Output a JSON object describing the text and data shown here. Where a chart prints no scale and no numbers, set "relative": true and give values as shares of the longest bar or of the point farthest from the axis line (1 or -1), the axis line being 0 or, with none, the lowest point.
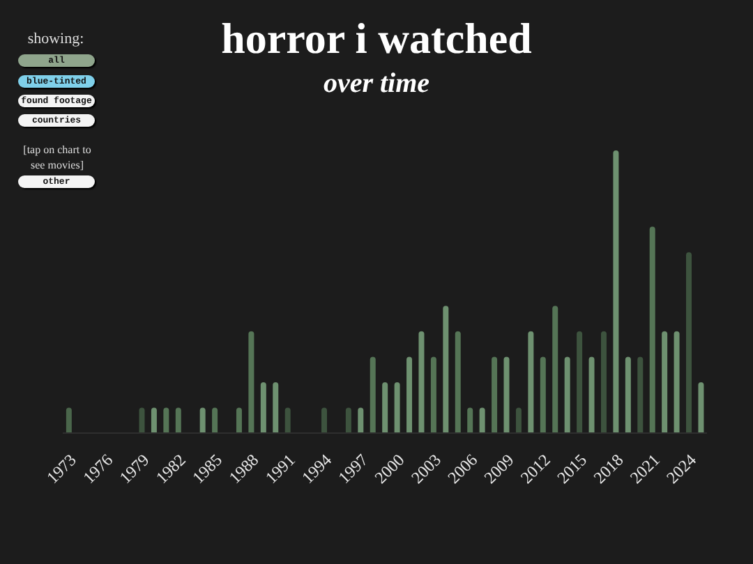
{
  "chart_data": {
    "type": "bar",
    "title": "horror i watched",
    "subtitle": "over time",
    "relative": true,
    "categories": [
      "1973",
      null,
      null,
      "1976",
      null,
      null,
      "1979",
      null,
      null,
      "1982",
      null,
      null,
      "1985",
      null,
      null,
      "1988",
      null,
      null,
      "1991",
      null,
      null,
      "1994",
      null,
      null,
      "1997",
      null,
      null,
      "2000",
      null,
      null,
      "2003",
      null,
      null,
      "2006",
      null,
      null,
      "2009",
      null,
      null,
      "2012",
      null,
      null,
      "2015",
      null,
      null,
      "2018",
      null,
      null,
      "2021",
      null,
      null,
      "2024",
      null
    ],
    "values": [
      0.09,
      0,
      0,
      0,
      0,
      0,
      0.09,
      0.09,
      0.09,
      0.09,
      0,
      0.09,
      0.09,
      0,
      0.09,
      0.36,
      0.18,
      0.18,
      0.09,
      0,
      0,
      0.09,
      0,
      0.09,
      0.09,
      0.27,
      0.18,
      0.18,
      0.27,
      0.36,
      0.27,
      0.45,
      0.36,
      0.09,
      0.09,
      0.27,
      0.27,
      0.09,
      0.36,
      0.27,
      0.45,
      0.27,
      0.36,
      0.27,
      0.36,
      1,
      0.27,
      0.27,
      0.73,
      0.36,
      0.36,
      0.64,
      0.18
    ],
    "colors": [
      "#4a664b",
      "#3d533e",
      "#3d533e",
      "#3d533e",
      "#3d533e",
      "#3d533e",
      "#3d533e",
      "#6e9170",
      "#557556",
      "#557556",
      "#3d533e",
      "#6e9170",
      "#557556",
      "#3d533e",
      "#557556",
      "#557556",
      "#6e9170",
      "#6e9170",
      "#3d533e",
      "#3d533e",
      "#3d533e",
      "#3d533e",
      "#3d533e",
      "#3d533e",
      "#6e9170",
      "#557556",
      "#6e9170",
      "#6e9170",
      "#6e9170",
      "#6e9170",
      "#557556",
      "#6e9170",
      "#557556",
      "#557556",
      "#6e9170",
      "#557556",
      "#6e9170",
      "#3d533e",
      "#6e9170",
      "#557556",
      "#557556",
      "#6e9170",
      "#3d533e",
      "#6e9170",
      "#3d533e",
      "#6e9170",
      "#6e9170",
      "#3d533e",
      "#557556",
      "#6e9170",
      "#6e9170",
      "#3d533e",
      "#6e9170"
    ],
    "annotations": [
      "showing:",
      "all",
      "blue-tinted",
      "found footage",
      "countries",
      "[tap on chart to see movies]",
      "other"
    ]
  }
}
